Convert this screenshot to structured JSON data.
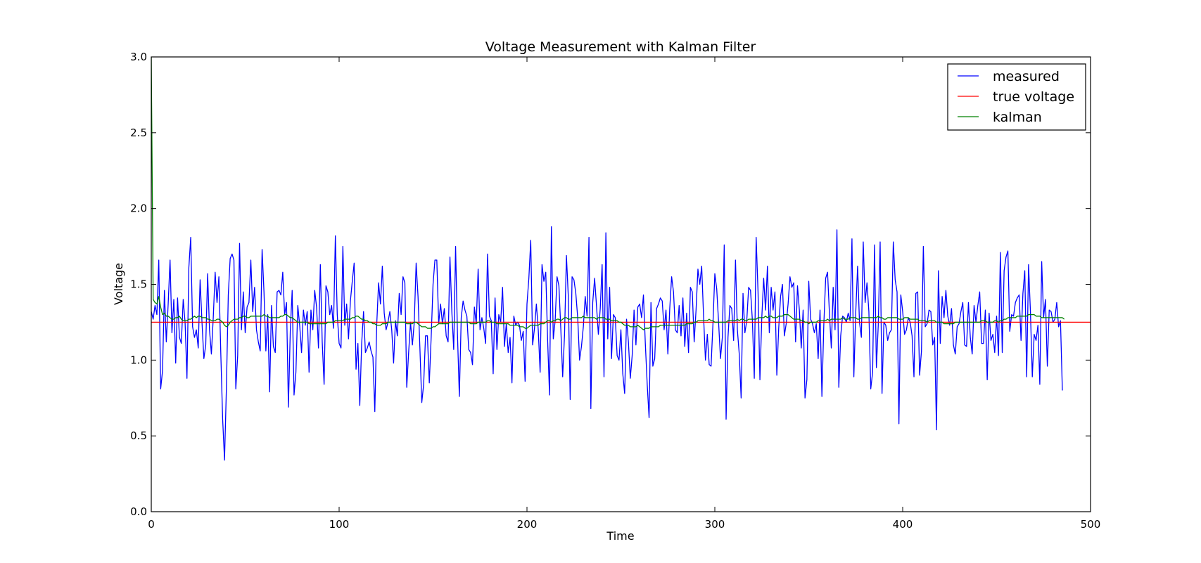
{
  "chart_data": {
    "type": "line",
    "title": "Voltage Measurement with Kalman Filter",
    "xlabel": "Time",
    "ylabel": "Voltage",
    "xlim": [
      0,
      500
    ],
    "ylim": [
      0.0,
      3.0
    ],
    "xticks": [
      "0",
      "100",
      "200",
      "300",
      "400",
      "500"
    ],
    "yticks": [
      "0.0",
      "0.5",
      "1.0",
      "1.5",
      "2.0",
      "2.5",
      "3.0"
    ],
    "grid": false,
    "legend_position": "top-right",
    "true_voltage": 1.25,
    "series": [
      {
        "name": "measured",
        "color": "#0000ff",
        "x_start": 0,
        "values": [
          1.32,
          1.27,
          1.36,
          1.3,
          1.66,
          0.81,
          0.93,
          1.46,
          1.12,
          1.37,
          1.66,
          1.18,
          1.4,
          0.98,
          1.41,
          1.15,
          1.11,
          1.4,
          1.25,
          0.88,
          1.61,
          1.81,
          1.22,
          1.15,
          1.2,
          1.08,
          1.53,
          1.25,
          1.01,
          1.1,
          1.57,
          1.2,
          1.04,
          1.28,
          1.58,
          1.38,
          1.55,
          1.05,
          0.61,
          0.34,
          0.82,
          1.43,
          1.67,
          1.7,
          1.66,
          0.81,
          1.03,
          1.77,
          1.2,
          1.45,
          1.18,
          1.35,
          1.38,
          1.66,
          1.32,
          1.48,
          1.2,
          1.12,
          1.06,
          1.73,
          1.45,
          1.06,
          1.3,
          0.79,
          1.36,
          1.09,
          1.05,
          1.45,
          1.46,
          1.43,
          1.58,
          1.3,
          1.38,
          0.69,
          1.19,
          1.46,
          0.77,
          0.92,
          1.36,
          1.23,
          1.05,
          1.33,
          1.23,
          1.32,
          0.92,
          1.33,
          1.2,
          1.46,
          1.35,
          1.08,
          1.63,
          1.12,
          0.84,
          1.49,
          1.45,
          1.3,
          1.36,
          1.21,
          1.82,
          1.3,
          1.11,
          1.08,
          1.75,
          1.23,
          1.37,
          1.14,
          1.39,
          1.52,
          1.64,
          0.94,
          1.11,
          0.7,
          1.11,
          1.32,
          1.05,
          1.08,
          1.12,
          1.06,
          1.02,
          0.66,
          1.23,
          1.51,
          1.37,
          1.62,
          1.31,
          1.2,
          1.25,
          1.32,
          1.2,
          0.98,
          1.26,
          1.16,
          1.44,
          1.3,
          1.55,
          1.51,
          0.82,
          1.05,
          1.25,
          1.1,
          1.25,
          1.64,
          1.42,
          1.08,
          0.72,
          0.84,
          1.16,
          1.16,
          0.85,
          1.15,
          1.5,
          1.66,
          1.66,
          1.24,
          1.37,
          1.24,
          1.34,
          1.16,
          1.12,
          1.68,
          1.32,
          1.07,
          1.75,
          1.17,
          0.76,
          1.28,
          1.39,
          1.33,
          1.29,
          1.07,
          1.05,
          0.97,
          1.35,
          1.24,
          1.6,
          1.2,
          1.28,
          1.21,
          1.11,
          1.7,
          1.29,
          1.26,
          0.91,
          1.41,
          1.07,
          1.3,
          1.25,
          1.48,
          1.09,
          1.24,
          1.05,
          1.15,
          0.85,
          1.29,
          1.23,
          1.25,
          1.23,
          1.13,
          1.19,
          0.86,
          1.37,
          1.54,
          1.79,
          1.1,
          1.21,
          1.37,
          1.2,
          0.92,
          1.63,
          1.52,
          1.58,
          1.13,
          0.77,
          1.88,
          1.14,
          1.26,
          1.55,
          1.49,
          1.21,
          0.89,
          1.17,
          1.69,
          1.42,
          0.74,
          1.55,
          1.53,
          1.44,
          1.28,
          1.0,
          1.09,
          1.22,
          1.42,
          1.29,
          1.81,
          0.68,
          1.38,
          1.54,
          1.36,
          1.17,
          1.34,
          1.63,
          0.89,
          1.84,
          1.14,
          1.48,
          1.01,
          1.3,
          1.28,
          1.03,
          1.0,
          1.2,
          0.91,
          0.78,
          1.27,
          1.12,
          0.88,
          1.03,
          1.33,
          1.1,
          1.35,
          1.37,
          1.28,
          1.43,
          1.11,
          0.84,
          0.62,
          1.38,
          0.96,
          1.01,
          1.34,
          1.37,
          1.41,
          1.39,
          1.2,
          1.33,
          1.04,
          1.34,
          1.55,
          1.45,
          1.2,
          1.18,
          1.36,
          1.16,
          1.41,
          1.09,
          1.31,
          1.05,
          1.48,
          1.45,
          1.12,
          1.33,
          1.6,
          1.5,
          1.62,
          1.29,
          1.0,
          1.17,
          0.97,
          0.96,
          1.24,
          1.57,
          1.47,
          1.25,
          1.01,
          1.15,
          1.76,
          0.61,
          1.15,
          1.36,
          1.34,
          1.13,
          1.66,
          1.2,
          1.04,
          0.75,
          1.44,
          1.18,
          1.26,
          1.48,
          1.46,
          1.26,
          0.88,
          1.81,
          1.45,
          0.87,
          1.28,
          1.54,
          1.33,
          1.62,
          1.18,
          1.48,
          1.33,
          1.45,
          0.9,
          1.21,
          1.42,
          1.5,
          1.16,
          1.24,
          1.37,
          1.55,
          1.48,
          1.51,
          1.12,
          1.49,
          1.33,
          1.08,
          1.33,
          0.75,
          0.87,
          1.52,
          1.27,
          1.24,
          1.18,
          1.24,
          1.01,
          1.33,
          0.76,
          1.23,
          1.54,
          1.58,
          1.31,
          1.08,
          1.48,
          1.2,
          1.86,
          0.82,
          1.16,
          1.29,
          1.28,
          1.25,
          1.31,
          1.26,
          1.8,
          0.89,
          1.31,
          1.62,
          1.25,
          1.15,
          1.78,
          1.38,
          1.51,
          1.32,
          0.81,
          0.92,
          1.76,
          0.95,
          1.23,
          1.78,
          0.78,
          1.25,
          1.23,
          1.13,
          1.18,
          1.2,
          1.78,
          1.53,
          1.45,
          0.58,
          1.43,
          1.32,
          1.17,
          1.2,
          1.28,
          1.25,
          1.16,
          0.89,
          1.44,
          1.45,
          0.9,
          1.06,
          1.75,
          1.22,
          1.24,
          1.33,
          1.32,
          1.1,
          1.15,
          0.54,
          1.59,
          1.11,
          1.42,
          1.28,
          1.46,
          1.29,
          1.23,
          1.34,
          1.1,
          1.04,
          1.22,
          1.24,
          1.32,
          1.38,
          1.1,
          1.09,
          1.38,
          1.15,
          1.04,
          1.36,
          1.25,
          1.36,
          1.45,
          1.11,
          1.11,
          1.33,
          0.87,
          1.31,
          1.13,
          1.17,
          1.05,
          1.29,
          1.03,
          1.71,
          1.05,
          1.59,
          1.68,
          1.72,
          1.19,
          1.3,
          1.29,
          1.38,
          1.41,
          1.43,
          1.13,
          1.44,
          1.59,
          0.89,
          1.63,
          1.32,
          0.89,
          1.17,
          1.13,
          1.23,
          0.84,
          1.65,
          1.28,
          1.4,
          0.96,
          1.33,
          1.32,
          1.25,
          1.27,
          1.38,
          1.22,
          1.26,
          0.8
        ]
      },
      {
        "name": "true voltage",
        "color": "#ff0000",
        "x": [
          0,
          500
        ],
        "values": [
          1.25,
          1.25
        ]
      },
      {
        "name": "kalman",
        "color": "#008000",
        "x_start": 0,
        "values": [
          3.0,
          1.4,
          1.38,
          1.37,
          1.42,
          1.35,
          1.3,
          1.31,
          1.29,
          1.29,
          1.28,
          1.27,
          1.27,
          1.28,
          1.28,
          1.29,
          1.27,
          1.26,
          1.26,
          1.26,
          1.27,
          1.27,
          1.28,
          1.29,
          1.28,
          1.29,
          1.29,
          1.28,
          1.28,
          1.28,
          1.27,
          1.27,
          1.26,
          1.26,
          1.26,
          1.27,
          1.27,
          1.26,
          1.25,
          1.23,
          1.22,
          1.23,
          1.25,
          1.26,
          1.27,
          1.27,
          1.27,
          1.28,
          1.28,
          1.29,
          1.29,
          1.28,
          1.28,
          1.29,
          1.29,
          1.29,
          1.29,
          1.29,
          1.29,
          1.29,
          1.3,
          1.29,
          1.29,
          1.28,
          1.28,
          1.28,
          1.28,
          1.28,
          1.28,
          1.29,
          1.29,
          1.3,
          1.3,
          1.29,
          1.28,
          1.28,
          1.27,
          1.26,
          1.25,
          1.25,
          1.25,
          1.25,
          1.25,
          1.25,
          1.24,
          1.24,
          1.24,
          1.24,
          1.24,
          1.24,
          1.24,
          1.24,
          1.24,
          1.24,
          1.25,
          1.25,
          1.25,
          1.25,
          1.26,
          1.26,
          1.26,
          1.26,
          1.26,
          1.27,
          1.27,
          1.27,
          1.27,
          1.28,
          1.28,
          1.29,
          1.29,
          1.28,
          1.27,
          1.27,
          1.26,
          1.26,
          1.25,
          1.25,
          1.24,
          1.24,
          1.23,
          1.23,
          1.23,
          1.24,
          1.24,
          1.24,
          1.25,
          1.25,
          1.25,
          1.25,
          1.25,
          1.25,
          1.25,
          1.25,
          1.25,
          1.25,
          1.24,
          1.24,
          1.24,
          1.24,
          1.25,
          1.25,
          1.24,
          1.23,
          1.22,
          1.22,
          1.22,
          1.21,
          1.21,
          1.21,
          1.22,
          1.22,
          1.23,
          1.24,
          1.24,
          1.24,
          1.24,
          1.24,
          1.24,
          1.25,
          1.25,
          1.25,
          1.25,
          1.25,
          1.25,
          1.25,
          1.25,
          1.25,
          1.25,
          1.25,
          1.24,
          1.24,
          1.24,
          1.24,
          1.25,
          1.25,
          1.25,
          1.25,
          1.25,
          1.26,
          1.26,
          1.25,
          1.25,
          1.25,
          1.24,
          1.24,
          1.24,
          1.24,
          1.24,
          1.24,
          1.24,
          1.23,
          1.23,
          1.23,
          1.23,
          1.23,
          1.22,
          1.22,
          1.22,
          1.21,
          1.21,
          1.22,
          1.23,
          1.23,
          1.23,
          1.23,
          1.23,
          1.24,
          1.24,
          1.24,
          1.25,
          1.26,
          1.26,
          1.25,
          1.26,
          1.26,
          1.27,
          1.27,
          1.26,
          1.27,
          1.28,
          1.28,
          1.27,
          1.27,
          1.28,
          1.28,
          1.28,
          1.28,
          1.28,
          1.28,
          1.29,
          1.28,
          1.28,
          1.28,
          1.28,
          1.28,
          1.28,
          1.27,
          1.28,
          1.28,
          1.28,
          1.28,
          1.27,
          1.27,
          1.27,
          1.26,
          1.26,
          1.26,
          1.26,
          1.25,
          1.25,
          1.24,
          1.23,
          1.23,
          1.23,
          1.22,
          1.22,
          1.22,
          1.22,
          1.23,
          1.22,
          1.21,
          1.2,
          1.21,
          1.21,
          1.21,
          1.22,
          1.22,
          1.22,
          1.22,
          1.22,
          1.23,
          1.23,
          1.23,
          1.23,
          1.23,
          1.23,
          1.23,
          1.23,
          1.23,
          1.23,
          1.23,
          1.23,
          1.23,
          1.23,
          1.24,
          1.24,
          1.24,
          1.24,
          1.25,
          1.25,
          1.26,
          1.26,
          1.26,
          1.26,
          1.26,
          1.26,
          1.27,
          1.26,
          1.26,
          1.25,
          1.25,
          1.25,
          1.25,
          1.25,
          1.25,
          1.25,
          1.26,
          1.26,
          1.26,
          1.26,
          1.26,
          1.27,
          1.26,
          1.27,
          1.27,
          1.26,
          1.26,
          1.27,
          1.27,
          1.27,
          1.27,
          1.27,
          1.28,
          1.28,
          1.28,
          1.28,
          1.29,
          1.28,
          1.29,
          1.29,
          1.28,
          1.28,
          1.28,
          1.29,
          1.29,
          1.29,
          1.3,
          1.3,
          1.3,
          1.29,
          1.28,
          1.27,
          1.27,
          1.27,
          1.27,
          1.26,
          1.26,
          1.25,
          1.25,
          1.24,
          1.25,
          1.25,
          1.25,
          1.25,
          1.26,
          1.26,
          1.26,
          1.26,
          1.26,
          1.27,
          1.26,
          1.27,
          1.27,
          1.27,
          1.27,
          1.27,
          1.27,
          1.28,
          1.27,
          1.27,
          1.27,
          1.28,
          1.28,
          1.28,
          1.28,
          1.27,
          1.27,
          1.28,
          1.28,
          1.28,
          1.28,
          1.28,
          1.28,
          1.28,
          1.28,
          1.28,
          1.29,
          1.28,
          1.28,
          1.27,
          1.27,
          1.28,
          1.28,
          1.28,
          1.28,
          1.28,
          1.28,
          1.27,
          1.27,
          1.27,
          1.28,
          1.28,
          1.28,
          1.27,
          1.27,
          1.27,
          1.27,
          1.27,
          1.26,
          1.26,
          1.26,
          1.26,
          1.25,
          1.26,
          1.26,
          1.26,
          1.26,
          1.25,
          1.25,
          1.25,
          1.25,
          1.24,
          1.24,
          1.24,
          1.24,
          1.24,
          1.24,
          1.25,
          1.25,
          1.25,
          1.25,
          1.25,
          1.25,
          1.25,
          1.25,
          1.25,
          1.25,
          1.25,
          1.25,
          1.25,
          1.25,
          1.26,
          1.26,
          1.26,
          1.25,
          1.25,
          1.25,
          1.25,
          1.26,
          1.26,
          1.25,
          1.26,
          1.26,
          1.27,
          1.27,
          1.28,
          1.28,
          1.28,
          1.28,
          1.28,
          1.29,
          1.29,
          1.29,
          1.29,
          1.29,
          1.29,
          1.3,
          1.3,
          1.3,
          1.3,
          1.29,
          1.29,
          1.29,
          1.28,
          1.28,
          1.28,
          1.28,
          1.28,
          1.28,
          1.28,
          1.28,
          1.28,
          1.28,
          1.28,
          1.28,
          1.27
        ]
      }
    ]
  }
}
